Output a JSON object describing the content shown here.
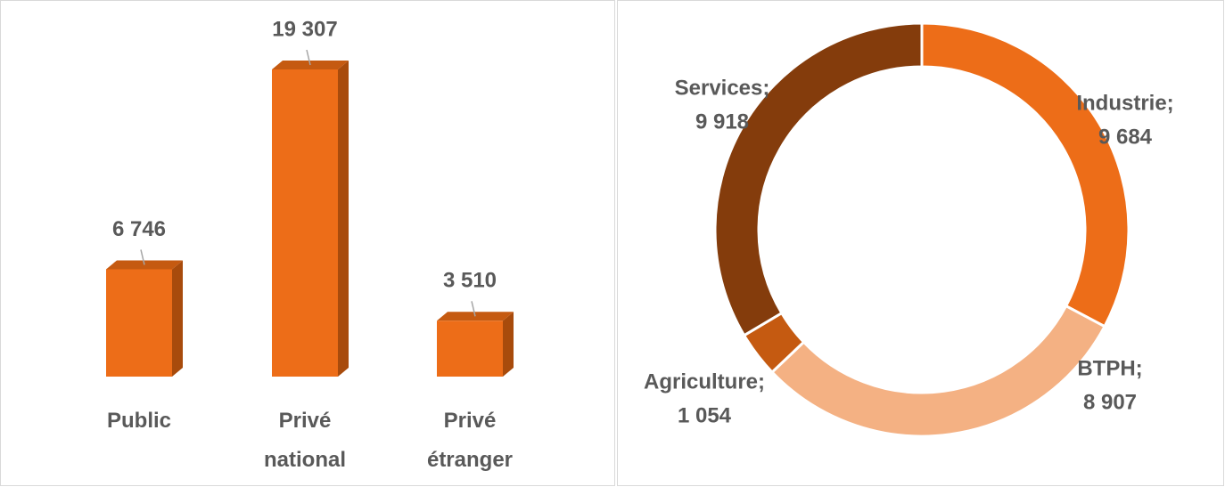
{
  "chart_data": [
    {
      "type": "bar3d",
      "categories": [
        "Public",
        "Privé national",
        "Privé étranger"
      ],
      "values": [
        6746,
        19307,
        3510
      ],
      "value_labels": [
        "6 746",
        "19 307",
        "3 510"
      ],
      "color": "#ed6d18"
    },
    {
      "type": "donut",
      "categories": [
        "Industrie;",
        "BTPH;",
        "Agriculture;",
        "Services;"
      ],
      "values": [
        9684,
        8907,
        1054,
        9918
      ],
      "value_labels": [
        "9 684",
        "8 907",
        "1 054",
        "9 918"
      ],
      "colors": [
        "#ed6d18",
        "#f4b183",
        "#c55a11",
        "#843c0c"
      ]
    }
  ]
}
